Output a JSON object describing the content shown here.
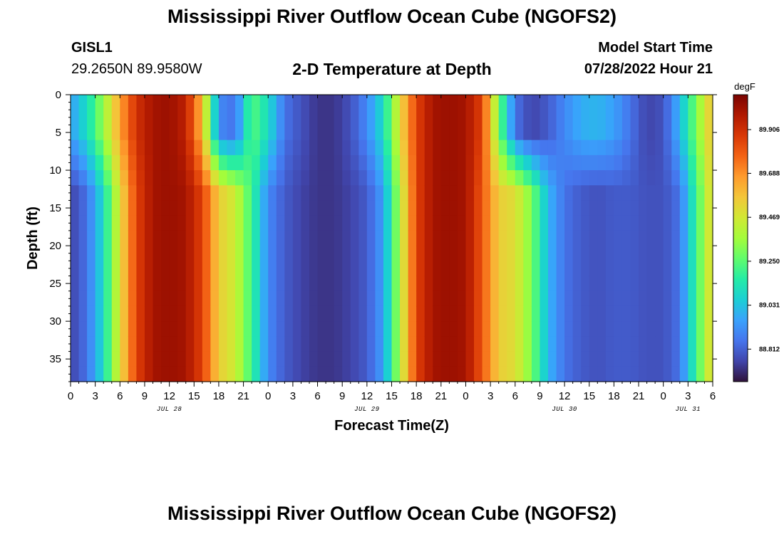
{
  "header": {
    "title": "Mississippi River Outflow Ocean Cube (NGOFS2)",
    "station_id": "GISL1",
    "station_coords": "29.2650N  89.9580W",
    "plot_title": "2-D Temperature at Depth",
    "model_start_label": "Model Start Time",
    "model_start_value": "07/28/2022 Hour 21"
  },
  "footer": {
    "title": "Mississippi River Outflow Ocean Cube (NGOFS2)"
  },
  "chart_data": {
    "type": "heatmap",
    "xlabel": "Forecast Time(Z)",
    "ylabel": "Depth (ft)",
    "x_range_hours_from_jul28_00z": [
      0,
      78
    ],
    "x_tick_labels": [
      "0",
      "3",
      "6",
      "9",
      "12",
      "15",
      "18",
      "21",
      "0",
      "3",
      "6",
      "9",
      "12",
      "15",
      "18",
      "21",
      "0",
      "3",
      "6",
      "9",
      "12",
      "15",
      "18",
      "21",
      "0",
      "3",
      "6"
    ],
    "date_labels": [
      {
        "label": "JUL 28",
        "hour": 12
      },
      {
        "label": "JUL 29",
        "hour": 36
      },
      {
        "label": "JUL 30",
        "hour": 60
      },
      {
        "label": "JUL 31",
        "hour": 75
      }
    ],
    "y_range_ft": [
      0,
      38
    ],
    "y_inverted": true,
    "y_tick_labels": [
      "0",
      "5",
      "10",
      "15",
      "20",
      "25",
      "30",
      "35"
    ],
    "colorbar": {
      "unit": "degF",
      "labels": [
        "89.906",
        "89.688",
        "89.469",
        "89.250",
        "89.031",
        "88.812"
      ],
      "range": [
        88.65,
        90.08
      ]
    },
    "colors": [
      "#30123b",
      "#4145ab",
      "#4675ed",
      "#39a2fc",
      "#1bcfd4",
      "#24eca6",
      "#61fc6c",
      "#a4fc3b",
      "#d1e834",
      "#f3c63a",
      "#fe9b2d",
      "#f36315",
      "#d93806",
      "#b11901",
      "#7a0402"
    ],
    "temperature_profile": {
      "description_key": "surface/bottom temperature (degF) at each forecast hour",
      "hours": [
        0,
        2,
        4,
        6,
        8,
        10,
        12,
        14,
        16,
        18,
        20,
        22,
        24,
        26,
        28,
        30,
        32,
        34,
        36,
        38,
        40,
        42,
        44,
        46,
        48,
        50,
        52,
        54,
        56,
        58,
        60,
        62,
        64,
        66,
        68,
        70,
        72,
        74,
        76,
        78
      ],
      "surface": [
        88.95,
        89.1,
        89.35,
        89.65,
        89.9,
        90.0,
        90.02,
        89.95,
        89.6,
        88.9,
        88.85,
        89.25,
        89.1,
        88.85,
        88.78,
        88.72,
        88.72,
        88.78,
        88.9,
        89.1,
        89.5,
        89.85,
        90.0,
        90.02,
        90.0,
        89.85,
        89.3,
        88.85,
        88.75,
        88.8,
        88.9,
        88.98,
        89.0,
        88.95,
        88.85,
        88.75,
        88.78,
        89.0,
        89.3,
        89.6
      ],
      "bottom": [
        88.75,
        88.85,
        89.1,
        89.5,
        89.85,
        90.0,
        90.02,
        90.0,
        89.85,
        89.55,
        89.45,
        89.2,
        88.9,
        88.8,
        88.75,
        88.72,
        88.72,
        88.75,
        88.8,
        88.95,
        89.4,
        89.85,
        90.0,
        90.02,
        90.0,
        89.8,
        89.55,
        89.5,
        89.3,
        89.0,
        88.85,
        88.8,
        88.78,
        88.8,
        88.8,
        88.78,
        88.78,
        88.85,
        89.2,
        89.55
      ]
    }
  }
}
